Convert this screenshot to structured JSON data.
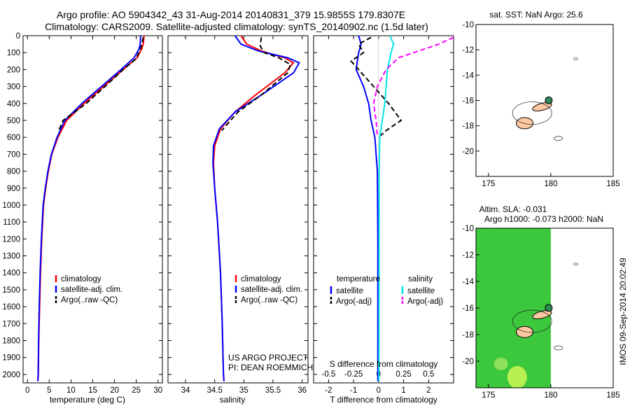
{
  "header": {
    "line1": "Argo profile: AO 5904342_43 31-Aug-2014 20140831_379 15.9855S 179.8307E",
    "line2": "Climatology: CARS2009. Satellite-adjusted climatology: synTS_20140902.nc (1.5d later)"
  },
  "colors": {
    "climatology": "#ff0000",
    "satellite": "#0000ff",
    "argo": "#000000",
    "sal_satellite": "#00e5e5",
    "sal_argo": "#ff00ff",
    "land": "#ffc8a0",
    "sla_bg": "#3cc83c"
  },
  "depth_axis": {
    "ylim": [
      0,
      2050
    ],
    "ticks": [
      0,
      100,
      200,
      300,
      400,
      500,
      600,
      700,
      800,
      900,
      1000,
      1100,
      1200,
      1300,
      1400,
      1500,
      1600,
      1700,
      1800,
      1900,
      2000
    ]
  },
  "chart_data": [
    {
      "type": "line",
      "id": "temperature",
      "xlabel": "temperature (deg C)",
      "xlim": [
        -1,
        31
      ],
      "xticks": [
        0,
        5,
        10,
        15,
        20,
        25,
        30
      ],
      "legend": [
        "climatology",
        "satellite-adj. clim.",
        "Argo(..raw -QC)"
      ],
      "series": [
        {
          "name": "climatology",
          "x": [
            26.8,
            26.6,
            26.2,
            25.2,
            22.0,
            17.5,
            13.0,
            9.0,
            7.0,
            5.6,
            4.8,
            4.2,
            3.7,
            3.3,
            3.0,
            2.8,
            2.6,
            2.5,
            2.4
          ],
          "y": [
            0,
            50,
            80,
            130,
            200,
            300,
            400,
            500,
            600,
            700,
            800,
            900,
            1000,
            1200,
            1400,
            1600,
            1800,
            2000,
            2040
          ]
        },
        {
          "name": "satellite-adj. clim.",
          "x": [
            26.0,
            25.9,
            25.6,
            24.5,
            21.5,
            17.0,
            12.5,
            8.6,
            6.8,
            5.5,
            4.7,
            4.1,
            3.6,
            3.2,
            2.9,
            2.7,
            2.55,
            2.45,
            2.4
          ],
          "y": [
            0,
            50,
            80,
            130,
            200,
            300,
            400,
            500,
            600,
            700,
            800,
            900,
            1000,
            1200,
            1400,
            1600,
            1800,
            2000,
            2040
          ]
        },
        {
          "name": "Argo(..raw -QC)",
          "x": [
            26.6,
            26.3,
            25.8,
            24.8,
            22.0,
            17.8,
            13.5,
            8.2,
            7.2
          ],
          "y": [
            10,
            50,
            90,
            140,
            200,
            300,
            400,
            500,
            560
          ]
        }
      ]
    },
    {
      "type": "line",
      "id": "salinity",
      "xlabel": "salinity",
      "xlim": [
        33.7,
        36.1
      ],
      "xticks": [
        34,
        34.5,
        35,
        35.5,
        36
      ],
      "xtick_labels": [
        "34",
        "34.5",
        "35",
        "35.5",
        "36"
      ],
      "legend": [
        "climatology",
        "satellite-adj. clim.",
        "Argo(..raw -QC)"
      ],
      "annotation": [
        "US ARGO PROJECT",
        "PI: DEAN ROEMMICH"
      ],
      "series": [
        {
          "name": "climatology",
          "x": [
            34.95,
            35.05,
            35.3,
            35.7,
            35.85,
            35.7,
            35.2,
            34.85,
            34.6,
            34.5,
            34.48,
            34.5,
            34.55,
            34.6,
            34.63,
            34.65,
            34.66
          ],
          "y": [
            0,
            50,
            90,
            130,
            160,
            220,
            350,
            450,
            550,
            650,
            750,
            900,
            1100,
            1400,
            1700,
            2000,
            2040
          ]
        },
        {
          "name": "satellite-adj. clim.",
          "x": [
            34.85,
            34.95,
            35.25,
            35.75,
            35.95,
            35.85,
            35.3,
            34.85,
            34.58,
            34.48,
            34.47,
            34.5,
            34.55,
            34.6,
            34.63,
            34.65,
            34.66
          ],
          "y": [
            0,
            50,
            90,
            130,
            160,
            220,
            350,
            450,
            550,
            650,
            750,
            900,
            1100,
            1400,
            1700,
            2000,
            2040
          ]
        },
        {
          "name": "Argo(..raw -QC)",
          "x": [
            35.3,
            35.28,
            35.35,
            35.6,
            35.8,
            35.75,
            35.3,
            34.9,
            34.62
          ],
          "y": [
            10,
            60,
            100,
            130,
            170,
            220,
            350,
            450,
            560
          ]
        }
      ]
    },
    {
      "type": "line",
      "id": "differences",
      "xlabel": "T difference from climatology",
      "xlim": [
        -2.6,
        3.0
      ],
      "xticks": [
        -2,
        -1,
        0,
        1,
        2
      ],
      "top_xlabel": "S difference from climatology",
      "top_xticks": [
        -0.5,
        -0.25,
        0,
        0.25,
        0.5
      ],
      "top_xtick_labels": [
        "-0.5",
        "-0.25",
        "0",
        "0.25",
        "0.5"
      ],
      "legend_headers": [
        "temperature",
        "salinity"
      ],
      "legend": [
        "satellite",
        "Argo(-adj)",
        "satellite",
        "Argo(-adj)"
      ],
      "series": [
        {
          "name": "temperature satellite",
          "x": [
            -0.8,
            -0.7,
            -0.8,
            -0.9,
            -0.6,
            -0.4,
            -0.3,
            -0.15,
            -0.05,
            -0.03,
            -0.03,
            -0.03
          ],
          "y": [
            0,
            50,
            100,
            200,
            300,
            400,
            500,
            600,
            800,
            1200,
            1600,
            2040
          ]
        },
        {
          "name": "temperature Argo(-adj)",
          "x": [
            -0.3,
            -0.8,
            -0.6,
            -1.1,
            -0.5,
            0.4,
            0.9,
            0.3,
            0
          ],
          "y": [
            10,
            50,
            100,
            150,
            250,
            400,
            500,
            560,
            600
          ]
        },
        {
          "name": "salinity satellite",
          "x": [
            0.45,
            0.6,
            0.5,
            0.35,
            0.3,
            0.25,
            0.15,
            0.05,
            0.02,
            0.01
          ],
          "y": [
            0,
            50,
            100,
            200,
            300,
            400,
            500,
            600,
            800,
            2040
          ]
        },
        {
          "name": "salinity Argo(-adj)",
          "x": [
            3.0,
            2.4,
            1.6,
            0.8,
            0.3,
            -0.05,
            -0.2,
            -0.1,
            -0.05
          ],
          "y": [
            10,
            50,
            90,
            130,
            200,
            300,
            400,
            500,
            600
          ]
        }
      ]
    }
  ],
  "map_top": {
    "title": "sat. SST: NaN Argo: 25.6",
    "xlim": [
      174,
      185
    ],
    "ylim": [
      -22,
      -10
    ],
    "xticks": [
      175,
      180,
      185
    ],
    "yticks": [
      -10,
      -12,
      -14,
      -16,
      -18,
      -20
    ],
    "argo_position": {
      "lon": 179.83,
      "lat": -15.99
    }
  },
  "map_bottom": {
    "title_line1": "Altim. SLA: -0.031",
    "title_line2": "Argo h1000: -0.073 h2000: NaN",
    "xlim": [
      174,
      185
    ],
    "ylim": [
      -22,
      -10
    ],
    "xticks": [
      175,
      180,
      185
    ],
    "yticks": [
      -10,
      -12,
      -14,
      -16,
      -18,
      -20
    ],
    "argo_position": {
      "lon": 179.83,
      "lat": -15.99
    }
  },
  "footer": {
    "stamp": "IMOS 09-Sep-2014 20:02:49"
  }
}
